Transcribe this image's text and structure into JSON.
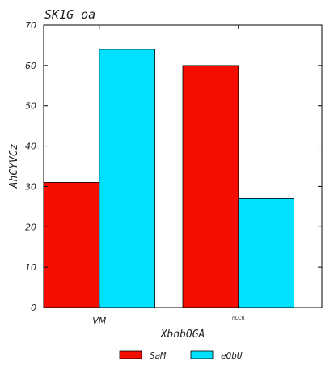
{
  "chart_data": {
    "type": "bar",
    "title": "SK1G oa",
    "xlabel": "XbnbOGA",
    "ylabel": "AhCYVCz",
    "categories": [
      "VM",
      "nLCR"
    ],
    "series": [
      {
        "name": "SaM",
        "values": [
          31,
          60
        ],
        "color": "#f50d00"
      },
      {
        "name": "eQbU",
        "values": [
          64,
          27
        ],
        "color": "#00e0ff"
      }
    ],
    "ylim": [
      0,
      70
    ],
    "yticks": [
      0,
      10,
      20,
      30,
      40,
      50,
      60,
      70
    ],
    "grid": false,
    "legend_position": "bottom-center"
  }
}
